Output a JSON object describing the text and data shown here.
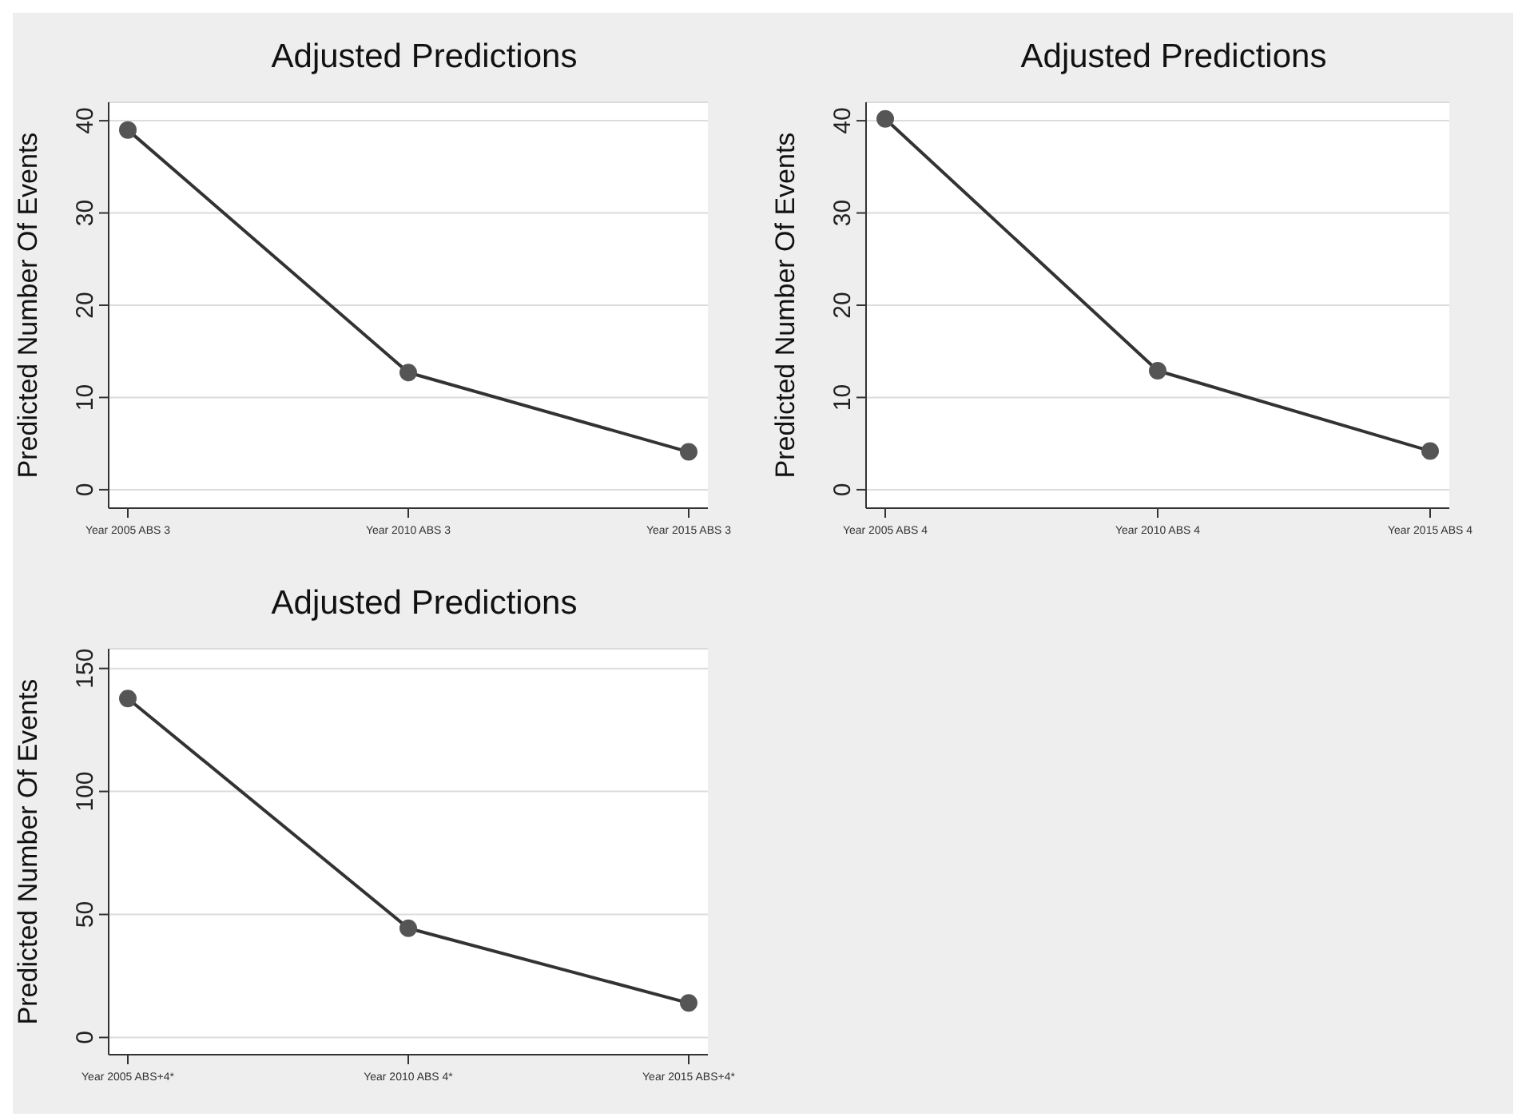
{
  "chart_data": [
    {
      "type": "line",
      "title": "Adjusted Predictions",
      "ylabel": "Predicted Number Of Events",
      "categories": [
        "Year 2005 ABS 3",
        "Year 2010 ABS 3",
        "Year 2015 ABS 3"
      ],
      "series": [
        {
          "color": "#333333",
          "values": [
            39,
            12.7,
            4.1
          ]
        }
      ],
      "ylim": [
        -2,
        42
      ],
      "yticks": [
        0,
        10,
        20,
        30,
        40
      ],
      "grid": "y",
      "marker": "circle",
      "line_style": "solid"
    },
    {
      "type": "line",
      "title": "Adjusted Predictions",
      "ylabel": "Predicted Number Of Events",
      "categories": [
        "Year 2005 ABS 4",
        "Year 2010 ABS 4",
        "Year 2015 ABS 4"
      ],
      "series": [
        {
          "color": "#333333",
          "values": [
            40.2,
            12.9,
            4.2
          ]
        }
      ],
      "ylim": [
        -2,
        42
      ],
      "yticks": [
        0,
        10,
        20,
        30,
        40
      ],
      "grid": "y",
      "marker": "circle",
      "line_style": "solid"
    },
    {
      "type": "line",
      "title": "Adjusted Predictions",
      "ylabel": "Predicted Number Of Events",
      "categories": [
        "Year 2005 ABS+4*",
        "Year 2010 ABS 4*",
        "Year 2015 ABS+4*"
      ],
      "series": [
        {
          "color": "#333333",
          "values": [
            137.8,
            44.4,
            14
          ]
        }
      ],
      "ylim": [
        -7,
        158
      ],
      "yticks": [
        0,
        50,
        100,
        150
      ],
      "grid": "y",
      "marker": "circle",
      "line_style": "solid"
    }
  ]
}
